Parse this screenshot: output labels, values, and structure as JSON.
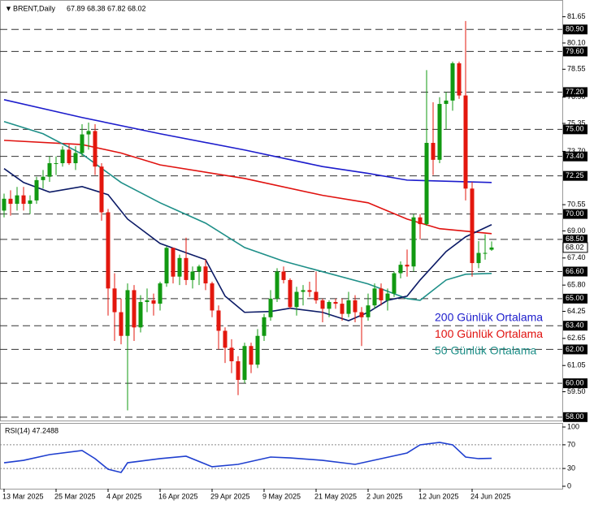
{
  "chart_data": {
    "type": "candlestick",
    "symbol": "BRENT,Daily",
    "categories": [
      "13 Mar 2025",
      null,
      null,
      null,
      null,
      null,
      null,
      null,
      "25 Mar 2025",
      null,
      null,
      null,
      null,
      null,
      null,
      null,
      "4 Apr 2025",
      null,
      null,
      null,
      null,
      null,
      null,
      null,
      "16 Apr 2025",
      null,
      null,
      null,
      null,
      null,
      null,
      null,
      "29 Apr 2025",
      null,
      null,
      null,
      null,
      null,
      null,
      null,
      "9 May 2025",
      null,
      null,
      null,
      null,
      null,
      null,
      null,
      "21 May 2025",
      null,
      null,
      null,
      null,
      null,
      null,
      null,
      "2 Jun 2025",
      null,
      null,
      null,
      null,
      null,
      null,
      null,
      "12 Jun 2025",
      null,
      null,
      null,
      null,
      null,
      null,
      null,
      "24 Jun 2025",
      null,
      null,
      null
    ],
    "open": [
      70.2,
      70.9,
      70.6,
      71.1,
      70.6,
      70.8,
      72.0,
      72.2,
      73.0,
      73.0,
      73.8,
      73.0,
      73.6,
      74.7,
      74.9,
      72.8,
      70.1,
      65.6,
      64.2,
      62.8,
      65.5,
      63.3,
      64.8,
      64.9,
      64.7,
      65.9,
      68.0,
      66.3,
      67.4,
      66.1,
      66.6,
      66.9,
      65.9,
      64.3,
      63.1,
      62.1,
      61.3,
      60.2,
      62.2,
      61.1,
      62.8,
      63.9,
      65.0,
      66.6,
      66.1,
      64.5,
      65.4,
      65.5,
      65.4,
      64.9,
      64.4,
      64.8,
      64.7,
      64.1,
      64.9,
      64.2,
      63.9,
      64.6,
      65.6,
      64.9,
      65.3,
      66.5,
      67.0,
      66.9,
      69.8,
      69.4,
      74.2,
      73.2,
      76.5,
      76.7,
      78.9,
      77.0,
      71.5,
      67.1,
      67.7,
      67.89
    ],
    "high": [
      71.2,
      71.4,
      71.6,
      71.6,
      71.1,
      72.2,
      72.6,
      73.4,
      73.4,
      74.0,
      74.1,
      74.0,
      75.3,
      75.4,
      75.3,
      73.0,
      70.3,
      66.5,
      65.0,
      65.9,
      65.8,
      65.2,
      65.6,
      65.3,
      66.0,
      68.1,
      68.0,
      67.6,
      68.6,
      66.9,
      67.0,
      67.3,
      66.0,
      64.6,
      63.3,
      62.6,
      61.6,
      62.4,
      62.4,
      63.2,
      64.1,
      65.5,
      66.8,
      66.9,
      66.2,
      65.7,
      65.8,
      66.0,
      66.6,
      65.0,
      64.9,
      65.0,
      65.0,
      65.4,
      65.2,
      64.5,
      65.3,
      65.9,
      65.9,
      65.6,
      66.6,
      67.2,
      67.9,
      70.0,
      70.0,
      78.5,
      76.6,
      76.9,
      77.2,
      79.0,
      79.0,
      81.4,
      71.9,
      68.4,
      68.8,
      68.38
    ],
    "low": [
      69.8,
      69.9,
      70.2,
      70.2,
      70.0,
      70.6,
      71.5,
      71.9,
      72.3,
      72.8,
      72.9,
      72.6,
      73.4,
      73.8,
      72.3,
      69.6,
      64.0,
      62.5,
      62.3,
      58.4,
      62.5,
      63.0,
      64.2,
      64.0,
      64.3,
      65.7,
      65.9,
      65.8,
      65.8,
      65.6,
      65.8,
      65.5,
      63.9,
      62.0,
      61.2,
      60.6,
      59.3,
      60.0,
      60.6,
      60.9,
      62.5,
      63.7,
      64.8,
      65.9,
      64.4,
      64.0,
      64.6,
      65.1,
      64.7,
      63.6,
      63.9,
      64.4,
      63.7,
      63.9,
      63.6,
      62.2,
      63.7,
      64.4,
      64.6,
      64.3,
      65.1,
      66.2,
      66.3,
      66.6,
      68.5,
      69.3,
      72.3,
      73.0,
      75.0,
      76.1,
      76.8,
      70.8,
      66.3,
      66.8,
      67.3,
      67.82
    ],
    "close": [
      70.9,
      70.6,
      71.1,
      70.6,
      70.8,
      72.0,
      72.2,
      73.0,
      73.0,
      73.8,
      73.0,
      73.6,
      74.7,
      74.9,
      72.8,
      70.1,
      65.6,
      64.2,
      62.8,
      65.5,
      63.3,
      64.8,
      64.9,
      64.7,
      65.9,
      68.0,
      66.3,
      67.4,
      66.1,
      66.6,
      66.9,
      65.9,
      64.3,
      63.1,
      62.1,
      61.3,
      60.2,
      62.2,
      61.1,
      62.8,
      63.9,
      65.0,
      66.6,
      66.1,
      64.5,
      65.4,
      65.5,
      65.4,
      64.9,
      64.4,
      64.8,
      64.7,
      64.1,
      64.9,
      64.2,
      63.9,
      64.6,
      65.6,
      64.9,
      65.3,
      66.5,
      67.0,
      66.9,
      69.8,
      69.4,
      74.2,
      73.2,
      76.5,
      76.7,
      78.9,
      77.0,
      71.5,
      67.1,
      67.7,
      67.7,
      68.02
    ],
    "up_color": "#119911",
    "down_color": "#e3170e",
    "ylim": [
      57.8,
      82.4
    ],
    "yticks": [
      81.65,
      {
        "value": 80.1,
        "label": "80.10"
      },
      78.55,
      {
        "value": 76.9,
        "label": "76.90"
      },
      75.35,
      {
        "value": 73.7,
        "label": "73.70"
      },
      70.55,
      {
        "value": 69,
        "label": "69.00"
      },
      {
        "value": 67.4,
        "label": "67.40"
      },
      {
        "value": 65.8,
        "label": "65.80"
      },
      64.25,
      62.65,
      61.05,
      {
        "value": 59.5,
        "label": "59.50"
      }
    ],
    "levels": [
      {
        "value": 80.9,
        "label": "80.90"
      },
      {
        "value": 79.6,
        "label": "79.60"
      },
      {
        "value": 77.2,
        "label": "77.20"
      },
      {
        "value": 75,
        "label": "75.00"
      },
      {
        "value": 73.4,
        "label": "73.40"
      },
      72.25,
      {
        "value": 70,
        "label": "70.00"
      },
      {
        "value": 68.5,
        "label": "68.50"
      },
      {
        "value": 66.6,
        "label": "66.60"
      },
      {
        "value": 65,
        "label": "65.00"
      },
      {
        "value": 63.4,
        "label": "63.40"
      },
      {
        "value": 62,
        "label": "62.00"
      },
      {
        "value": 60,
        "label": "60.00"
      },
      {
        "value": 58,
        "label": "58.00"
      }
    ],
    "moving_averages": [
      {
        "name": "200 Günlük Ortalama",
        "color": "#1c1ccc",
        "x": [
          0,
          12,
          24,
          37,
          49,
          56,
          62,
          75
        ],
        "values": [
          76.75,
          75.7,
          74.74,
          73.78,
          72.8,
          72.4,
          72.0,
          71.86
        ]
      },
      {
        "name": "100 Günlük Ortalama",
        "color": "#e0120f",
        "x": [
          0,
          12,
          18,
          24,
          37,
          49,
          56,
          62,
          67,
          75
        ],
        "values": [
          74.35,
          74.1,
          73.6,
          72.9,
          72.1,
          71.1,
          70.66,
          69.7,
          69.13,
          68.84
        ]
      },
      {
        "name": "50 Günlük Ortalama",
        "color": "#1e8f88",
        "x": [
          0,
          6,
          12,
          18,
          24,
          31,
          37,
          43,
          49,
          56,
          62,
          64,
          68,
          71,
          75
        ],
        "values": [
          75.46,
          74.74,
          73.54,
          71.86,
          70.66,
          69.46,
          68.02,
          67.21,
          66.59,
          65.87,
          65.0,
          64.9,
          66.1,
          66.44,
          66.49
        ]
      },
      {
        "color": "#0b1a66",
        "x": [
          0,
          3,
          7,
          12,
          16,
          19,
          24,
          31,
          34,
          37,
          41,
          44,
          49,
          53,
          56,
          59,
          62,
          64,
          68,
          71,
          75
        ],
        "values": [
          72.68,
          71.86,
          71.29,
          71.62,
          71.14,
          69.7,
          68.26,
          67.3,
          65.15,
          64.19,
          64.24,
          64.43,
          64.19,
          63.7,
          64.19,
          64.9,
          65.15,
          66.1,
          67.78,
          68.65,
          69.37
        ]
      }
    ],
    "rsi": {
      "title": "RSI(14) 47.2488",
      "color": "#1f3fcf",
      "ylim": [
        0,
        100
      ],
      "yticks": [
        100,
        70,
        30,
        0
      ],
      "levels": [
        70,
        30
      ],
      "x": [
        0,
        3,
        7,
        12,
        14,
        16,
        18,
        19,
        24,
        28,
        32,
        36,
        41,
        44,
        49,
        54,
        58,
        62,
        64,
        67,
        69,
        71,
        73,
        75
      ],
      "values": [
        39.7,
        43.8,
        53.4,
        60.3,
        46.6,
        28.8,
        23.3,
        39.7,
        46.6,
        50.7,
        32.9,
        37.0,
        49.3,
        47.9,
        43.8,
        37.0,
        46.6,
        56.2,
        69.9,
        74.0,
        69.9,
        49.3,
        46.6,
        47.2
      ]
    }
  }
}
